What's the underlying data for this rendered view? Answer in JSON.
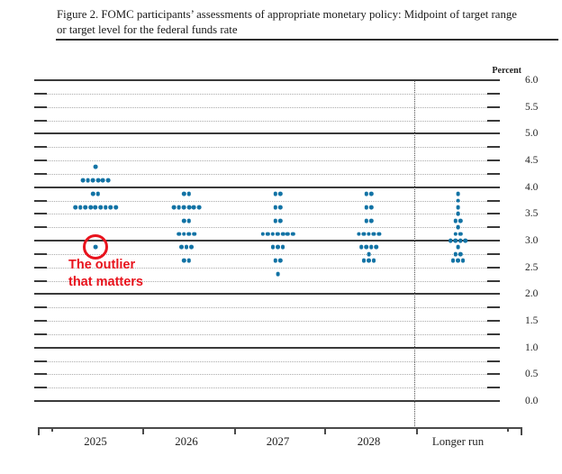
{
  "title": {
    "line1": "Figure 2. FOMC participants’ assessments of appropriate monetary policy: Midpoint of target range",
    "line2": "or target level for the federal funds rate"
  },
  "chart_data": {
    "type": "scatter",
    "title": "Figure 2. FOMC participants’ assessments of appropriate monetary policy: Midpoint of target range or target level for the federal funds rate",
    "unit_label": "Percent",
    "ylim": [
      0.0,
      6.0
    ],
    "grid_interval": 0.25,
    "ytick_label_interval": 0.5,
    "ytick_labels": [
      "6.0",
      "5.5",
      "5.0",
      "4.5",
      "4.0",
      "3.5",
      "3.0",
      "2.5",
      "2.0",
      "1.5",
      "1.0",
      "0.5",
      "0.0"
    ],
    "grid": "solid lines at whole percents, dotted lines at quarter percents",
    "categories": [
      "2025",
      "2026",
      "2027",
      "2028",
      "Longer run"
    ],
    "separator_before_category": "Longer run",
    "series": [
      {
        "category": "2025",
        "dots": [
          {
            "rate": 4.375,
            "count": 1
          },
          {
            "rate": 4.125,
            "count": 6
          },
          {
            "rate": 3.875,
            "count": 2
          },
          {
            "rate": 3.625,
            "count": 9
          },
          {
            "rate": 2.875,
            "count": 1
          }
        ]
      },
      {
        "category": "2026",
        "dots": [
          {
            "rate": 3.875,
            "count": 2
          },
          {
            "rate": 3.625,
            "count": 6
          },
          {
            "rate": 3.375,
            "count": 2
          },
          {
            "rate": 3.125,
            "count": 4
          },
          {
            "rate": 2.875,
            "count": 3
          },
          {
            "rate": 2.625,
            "count": 2
          }
        ]
      },
      {
        "category": "2027",
        "dots": [
          {
            "rate": 3.875,
            "count": 2
          },
          {
            "rate": 3.625,
            "count": 2
          },
          {
            "rate": 3.375,
            "count": 2
          },
          {
            "rate": 3.125,
            "count": 7
          },
          {
            "rate": 2.875,
            "count": 3
          },
          {
            "rate": 2.625,
            "count": 2
          },
          {
            "rate": 2.375,
            "count": 1
          }
        ]
      },
      {
        "category": "2028",
        "dots": [
          {
            "rate": 3.875,
            "count": 2
          },
          {
            "rate": 3.625,
            "count": 2
          },
          {
            "rate": 3.375,
            "count": 2
          },
          {
            "rate": 3.125,
            "count": 5
          },
          {
            "rate": 2.875,
            "count": 4
          },
          {
            "rate": 2.75,
            "count": 1
          },
          {
            "rate": 2.625,
            "count": 3
          }
        ]
      },
      {
        "category": "Longer run",
        "dots": [
          {
            "rate": 3.875,
            "count": 1
          },
          {
            "rate": 3.75,
            "count": 1
          },
          {
            "rate": 3.625,
            "count": 1
          },
          {
            "rate": 3.5,
            "count": 1
          },
          {
            "rate": 3.375,
            "count": 2
          },
          {
            "rate": 3.25,
            "count": 1
          },
          {
            "rate": 3.125,
            "count": 2
          },
          {
            "rate": 3.0,
            "count": 4
          },
          {
            "rate": 2.875,
            "count": 1
          },
          {
            "rate": 2.75,
            "count": 2
          },
          {
            "rate": 2.625,
            "count": 3
          }
        ]
      }
    ]
  },
  "annotation": {
    "line1": "The outlier",
    "line2": "that matters",
    "circled_dot": {
      "category": "2025",
      "rate": 2.875
    }
  },
  "colors": {
    "dot": "#1273a5",
    "annotation_red": "#e8131d",
    "grid_dark": "#3a3a3a",
    "grid_light": "#ababab",
    "text": "#1a1a1a"
  }
}
